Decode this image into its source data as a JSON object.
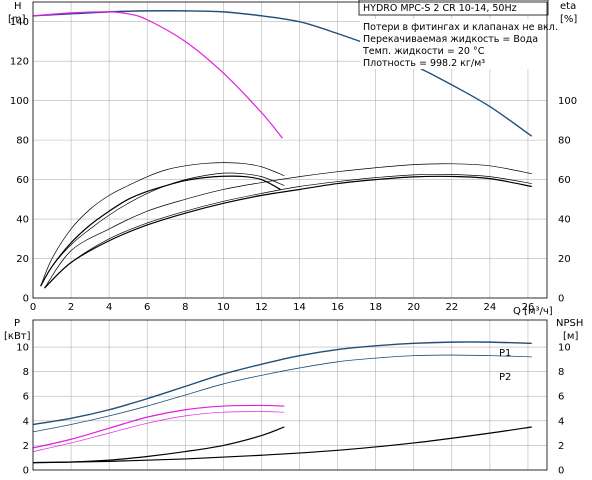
{
  "chart_data": [
    {
      "type": "line",
      "panel": "head-efficiency",
      "title": "HYDRO MPC-S 2 CR 10-14, 50Hz",
      "annotations": [
        "Потери в фитингах и клапанах не вкл.",
        "Перекачиваемая жидкость = Вода",
        "Темп. жидкости = 20 °C",
        "Плотность = 998.2 кг/м³"
      ],
      "xlabel": "Q [м³/ч]",
      "xlim": [
        0,
        27
      ],
      "x_ticks": [
        0,
        2,
        4,
        6,
        8,
        10,
        12,
        14,
        16,
        18,
        20,
        22,
        24,
        26
      ],
      "left_axis": {
        "label_top": "H",
        "label_bottom": "[m]",
        "ylim": [
          0,
          150
        ],
        "ticks": [
          0,
          20,
          40,
          60,
          80,
          100,
          120,
          140
        ]
      },
      "right_axis": {
        "label_top": "eta",
        "label_bottom": "[%]",
        "ylim": [
          0,
          150
        ],
        "ticks": [
          0,
          20,
          40,
          60,
          80,
          100
        ]
      },
      "grid": true,
      "series": [
        {
          "color": "#1f4e79",
          "width": 1.4,
          "x": [
            0,
            2,
            4,
            6,
            8,
            10,
            12,
            14,
            16,
            18,
            20,
            22,
            24,
            26.2
          ],
          "y": [
            143,
            144,
            145,
            145.5,
            145.5,
            145,
            143,
            140,
            134,
            127,
            118,
            108,
            97,
            82
          ]
        },
        {
          "color": "#e020e0",
          "width": 1.2,
          "x": [
            0,
            2,
            4,
            5,
            6,
            8,
            10,
            12,
            13.1
          ],
          "y": [
            143,
            144.5,
            145,
            144,
            141,
            130,
            114,
            94,
            81
          ]
        },
        {
          "color": "#000000",
          "width": 1.2,
          "x": [
            0.4,
            1,
            2,
            3,
            4,
            5,
            6,
            7,
            8,
            9,
            10,
            11,
            12,
            13
          ],
          "y": [
            6,
            16,
            28,
            37,
            44,
            50,
            54,
            57,
            59.5,
            61,
            61.7,
            61.6,
            60,
            55
          ]
        },
        {
          "color": "#000000",
          "width": 0.7,
          "x": [
            0.4,
            1,
            2,
            3,
            4,
            5,
            6,
            7,
            8,
            9,
            10,
            11,
            12,
            13.2
          ],
          "y": [
            6,
            20,
            35,
            45,
            52,
            57,
            61.5,
            65,
            67,
            68.2,
            68.6,
            68.2,
            66.5,
            62
          ]
        },
        {
          "color": "#000000",
          "width": 0.7,
          "x": [
            0.4,
            1,
            2,
            3,
            4,
            5,
            6,
            7,
            8,
            9,
            10,
            11,
            12,
            13.2
          ],
          "y": [
            6,
            16,
            27,
            35,
            42,
            48,
            53,
            57,
            60,
            62,
            63.3,
            63,
            61.5,
            57
          ]
        },
        {
          "color": "#000000",
          "width": 1.2,
          "x": [
            0.6,
            2,
            4,
            6,
            8,
            10,
            12,
            14,
            16,
            18,
            20,
            22,
            24,
            26.2
          ],
          "y": [
            5,
            18,
            29,
            37,
            43,
            48,
            52,
            55,
            58,
            60,
            61.4,
            61.6,
            60.5,
            56.5
          ]
        },
        {
          "color": "#000000",
          "width": 0.7,
          "x": [
            0.6,
            2,
            4,
            6,
            8,
            10,
            12,
            14,
            16,
            18,
            20,
            22,
            24,
            26.2
          ],
          "y": [
            5,
            24,
            35,
            44,
            50,
            55,
            58.5,
            61.5,
            64,
            66,
            67.6,
            68,
            67,
            63
          ]
        },
        {
          "color": "#000000",
          "width": 0.7,
          "x": [
            0.6,
            2,
            4,
            6,
            8,
            10,
            12,
            14,
            16,
            18,
            20,
            22,
            24,
            26.2
          ],
          "y": [
            5,
            18,
            30,
            38,
            44,
            49,
            53,
            56.5,
            59,
            61,
            62.4,
            62.6,
            61.5,
            58
          ]
        }
      ]
    },
    {
      "type": "line",
      "panel": "power-npsh",
      "xlim": [
        0,
        27
      ],
      "left_axis": {
        "label_top": "P",
        "label_bottom": "[кВт]",
        "ylim": [
          0,
          12.2
        ],
        "ticks": [
          0,
          2,
          4,
          6,
          8,
          10
        ]
      },
      "right_axis": {
        "label_top": "NPSH",
        "label_bottom": "[м]",
        "ylim": [
          0,
          12.2
        ],
        "ticks": [
          0,
          2,
          4,
          6,
          8,
          10
        ]
      },
      "grid": true,
      "series": [
        {
          "name": "P1",
          "color": "#1f4e79",
          "width": 1.4,
          "x": [
            0,
            2,
            4,
            6,
            8,
            10,
            12,
            14,
            16,
            18,
            20,
            22,
            24,
            26.2
          ],
          "y": [
            3.7,
            4.2,
            4.9,
            5.8,
            6.8,
            7.8,
            8.6,
            9.3,
            9.8,
            10.1,
            10.3,
            10.4,
            10.4,
            10.3
          ]
        },
        {
          "name": "P2",
          "color": "#1f4e79",
          "width": 0.8,
          "x": [
            0,
            2,
            4,
            6,
            8,
            10,
            12,
            14,
            16,
            18,
            20,
            22,
            24,
            26.2
          ],
          "y": [
            3.1,
            3.7,
            4.4,
            5.2,
            6.1,
            7.0,
            7.7,
            8.3,
            8.8,
            9.1,
            9.3,
            9.35,
            9.3,
            9.2
          ]
        },
        {
          "color": "#e020e0",
          "width": 1.2,
          "x": [
            0,
            2,
            4,
            6,
            8,
            10,
            12,
            13.2
          ],
          "y": [
            1.8,
            2.5,
            3.4,
            4.3,
            4.9,
            5.2,
            5.25,
            5.2
          ]
        },
        {
          "color": "#e020e0",
          "width": 0.7,
          "x": [
            0,
            2,
            4,
            6,
            8,
            10,
            12,
            13.2
          ],
          "y": [
            1.5,
            2.2,
            3.0,
            3.8,
            4.4,
            4.7,
            4.75,
            4.7
          ]
        },
        {
          "color": "#000000",
          "width": 1.2,
          "x": [
            0,
            2,
            4,
            6,
            8,
            10,
            12,
            13.2
          ],
          "y": [
            0.6,
            0.65,
            0.8,
            1.1,
            1.5,
            2.0,
            2.8,
            3.5
          ]
        },
        {
          "color": "#000000",
          "width": 1.2,
          "x": [
            0,
            4,
            8,
            12,
            16,
            20,
            24,
            26.2
          ],
          "y": [
            0.6,
            0.7,
            0.9,
            1.2,
            1.6,
            2.2,
            3.0,
            3.5
          ]
        }
      ]
    }
  ]
}
